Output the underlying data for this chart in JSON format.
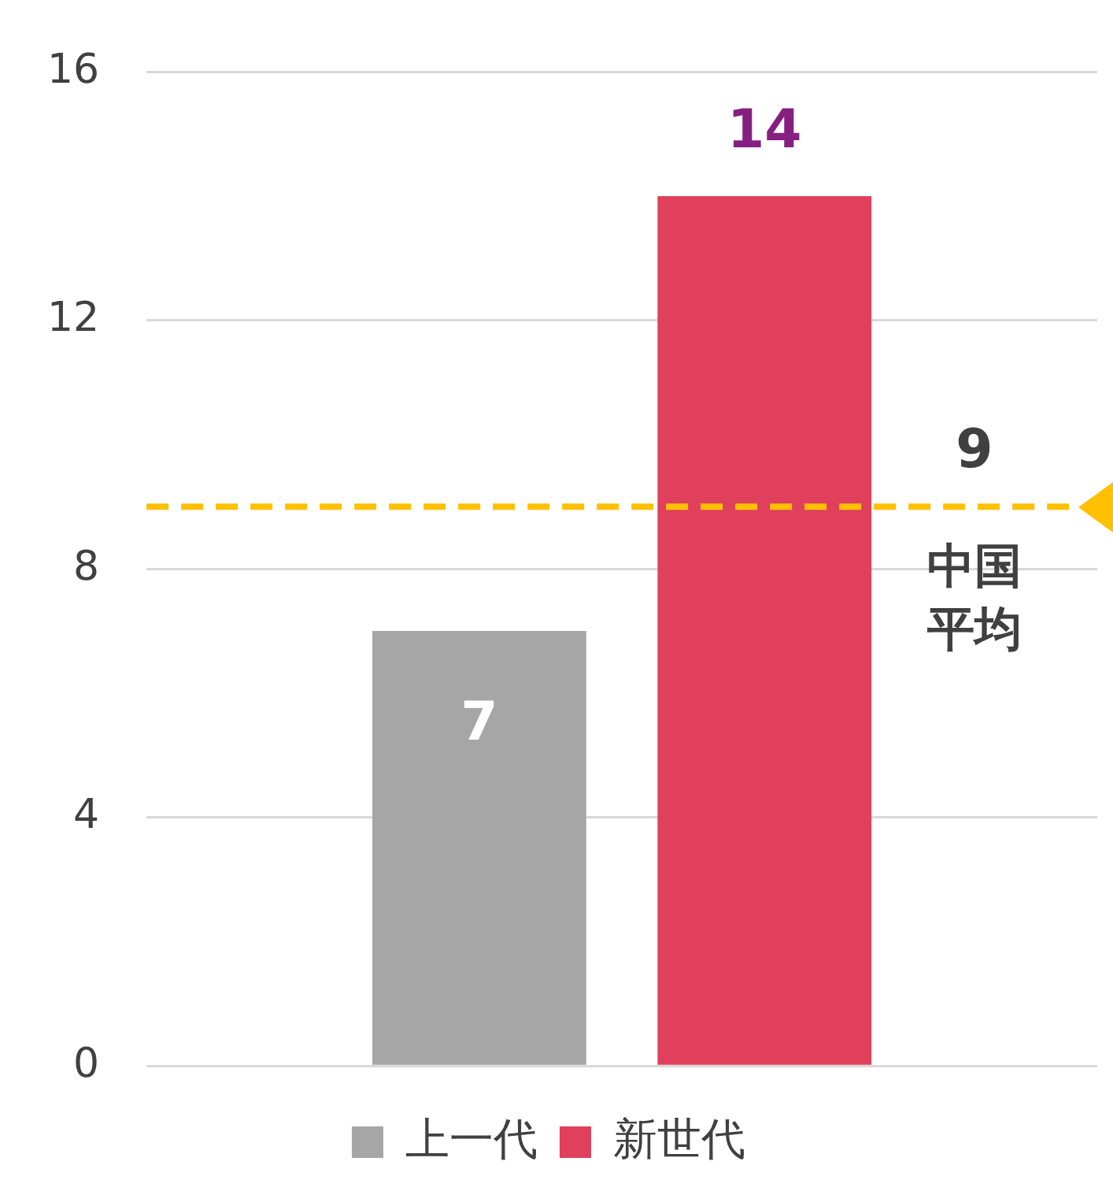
{
  "chart_data": {
    "type": "bar",
    "categories": [
      null
    ],
    "series": [
      {
        "name": "上一代",
        "color": "#a6a6a6",
        "values": [
          7
        ]
      },
      {
        "name": "新世代",
        "color": "#e0405c",
        "values": [
          14
        ]
      }
    ],
    "ylim": [
      0,
      16
    ],
    "yticks": [
      0,
      4,
      8,
      12,
      16
    ],
    "grid": "y",
    "legend": "bottom",
    "data_labels": true,
    "ref_lines": [
      {
        "axis": "y",
        "value": 9,
        "label": "9 中国平均",
        "color": "#ffc000",
        "line_style": "dashed"
      }
    ]
  }
}
